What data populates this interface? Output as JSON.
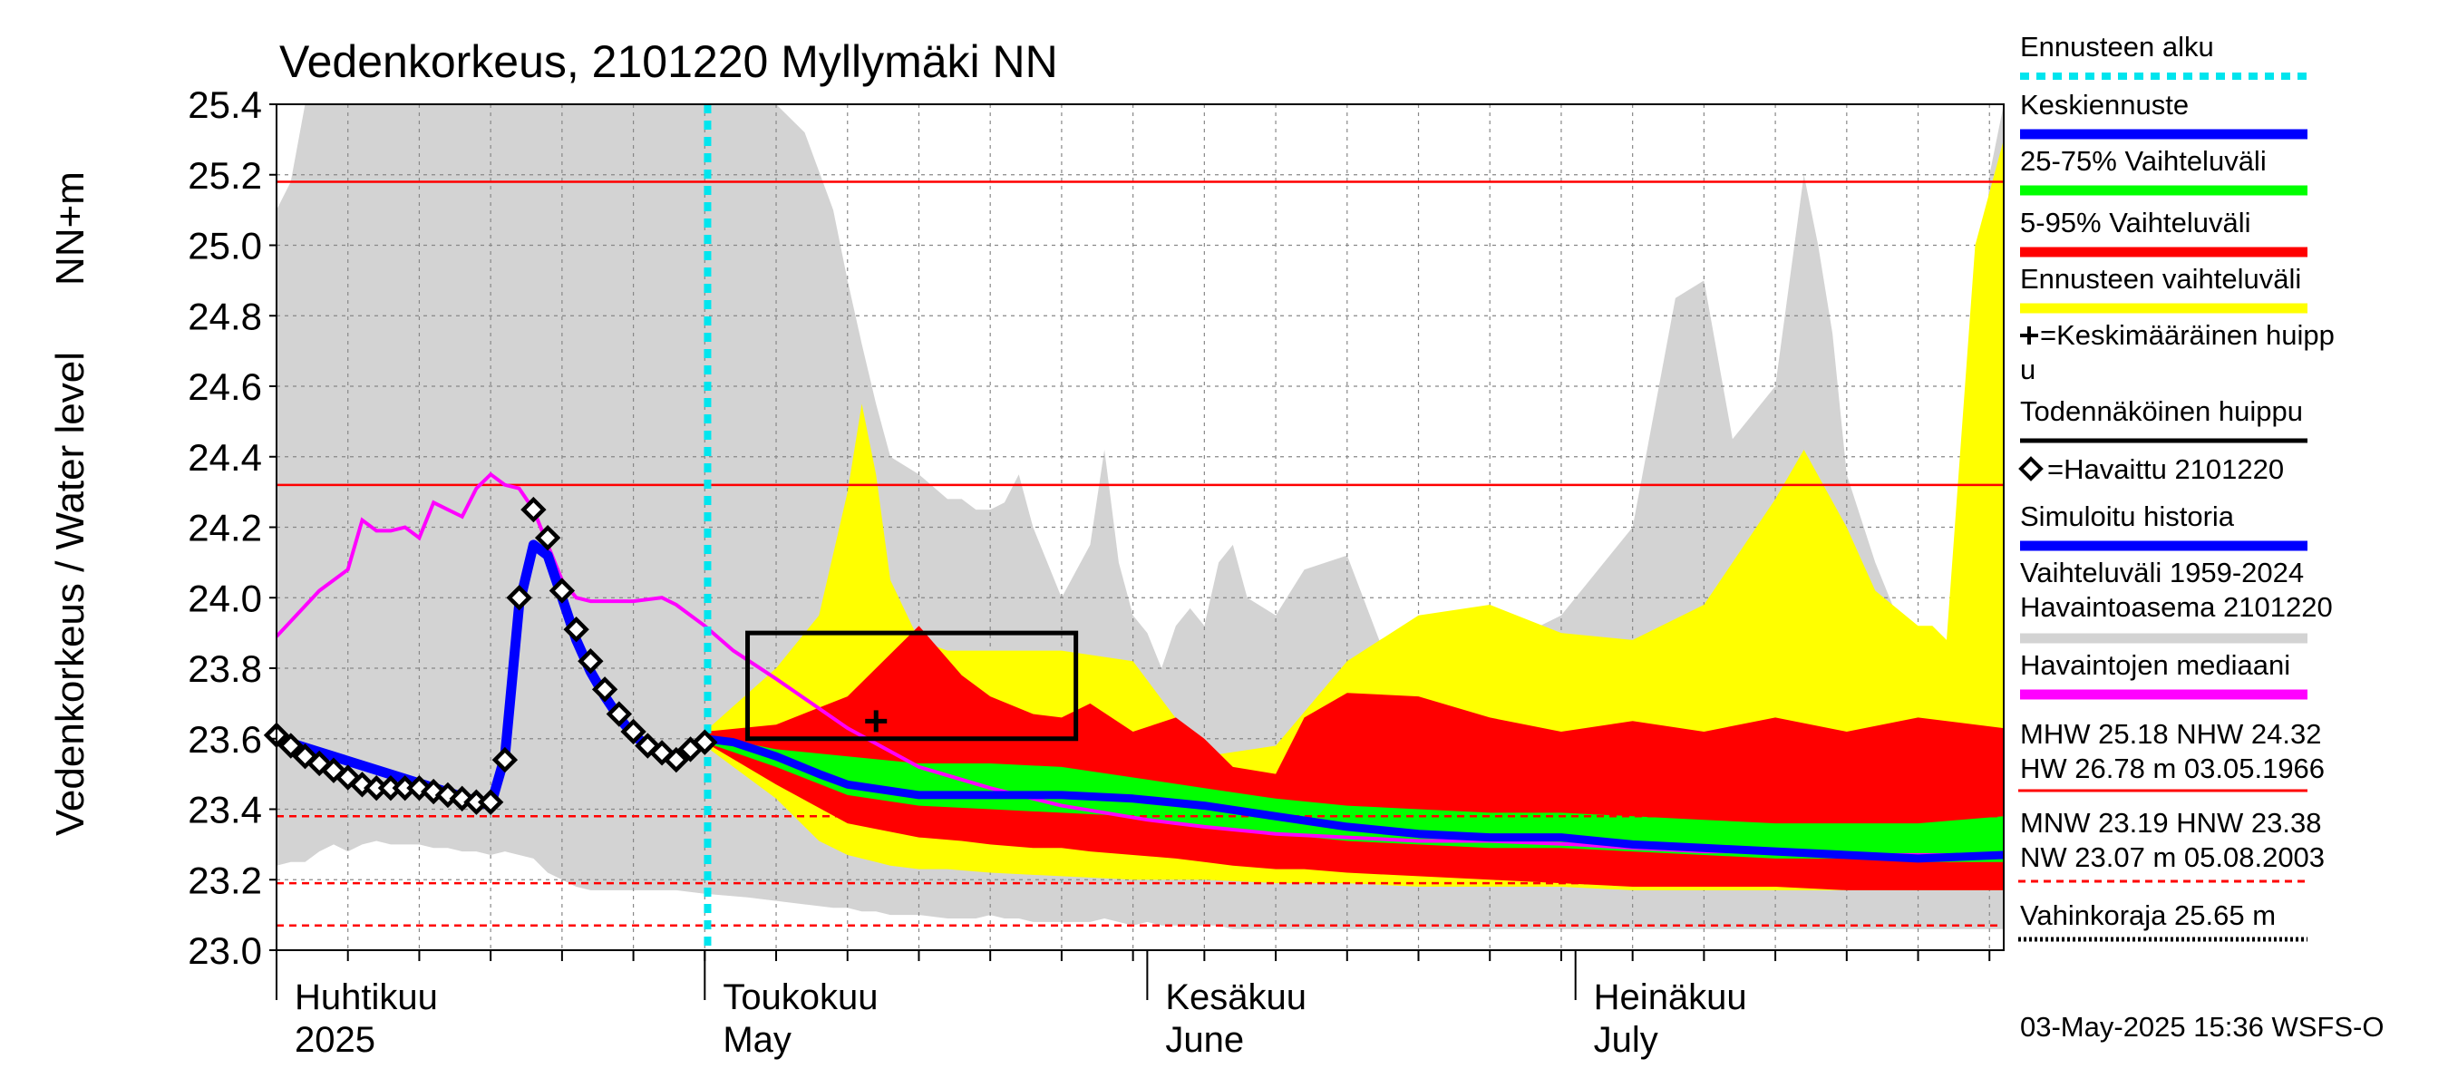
{
  "chart_data": {
    "type": "line",
    "title": "Vedenkorkeus, 2101220 Myllymäki NN",
    "ylabel_left": "Vedenkorkeus / Water level",
    "ylabel_unit": "NN+m",
    "ylim": [
      23.0,
      25.4
    ],
    "yticks": [
      "25.4",
      "25.2",
      "25.0",
      "24.8",
      "24.6",
      "24.4",
      "24.2",
      "24.0",
      "23.8",
      "23.6",
      "23.4",
      "23.2",
      "23.0"
    ],
    "xlim_days": [
      0,
      121
    ],
    "x_axis_note": "day index from 2025-04-01 to 2025-07-31",
    "month_labels": [
      {
        "day": 0,
        "fi": "Huhtikuu",
        "en": "2025"
      },
      {
        "day": 30,
        "fi": "Toukokuu",
        "en": "May"
      },
      {
        "day": 61,
        "fi": "Kesäkuu",
        "en": "June"
      },
      {
        "day": 91,
        "fi": "Heinäkuu",
        "en": "July"
      }
    ],
    "forecast_start_day": 30.2,
    "reference_lines": [
      {
        "name": "MHW",
        "value": 25.18,
        "style": "solid"
      },
      {
        "name": "NHW",
        "value": 24.32,
        "style": "solid"
      },
      {
        "name": "HNW",
        "value": 23.38,
        "style": "dashed"
      },
      {
        "name": "MNW",
        "value": 23.19,
        "style": "dashed"
      },
      {
        "name": "NW",
        "value": 23.07,
        "style": "dashed"
      }
    ],
    "observed": {
      "name": "Havaittu 2101220",
      "x": [
        0,
        1,
        2,
        3,
        4,
        5,
        6,
        7,
        8,
        9,
        10,
        11,
        12,
        13,
        14,
        15,
        16,
        17,
        18,
        19,
        20,
        21,
        22,
        23,
        24,
        25,
        26,
        27,
        28,
        29,
        30
      ],
      "y": [
        23.61,
        23.58,
        23.55,
        23.53,
        23.51,
        23.49,
        23.47,
        23.46,
        23.46,
        23.46,
        23.46,
        23.45,
        23.44,
        23.43,
        23.42,
        23.42,
        23.54,
        24.0,
        24.25,
        24.17,
        24.02,
        23.91,
        23.82,
        23.74,
        23.67,
        23.62,
        23.58,
        23.56,
        23.54,
        23.57,
        23.59
      ]
    },
    "simulated_history": {
      "name": "Simuloitu historia",
      "x": [
        0,
        15,
        16,
        17,
        18,
        19,
        20,
        21,
        22,
        23,
        24,
        25,
        26,
        27,
        28,
        29,
        30
      ],
      "y": [
        23.6,
        23.41,
        23.55,
        23.98,
        24.15,
        24.12,
        24.0,
        23.88,
        23.79,
        23.72,
        23.66,
        23.61,
        23.58,
        23.56,
        23.55,
        23.57,
        23.6
      ]
    },
    "median": {
      "name": "Havaintojen mediaani",
      "x": [
        0,
        3,
        5,
        6,
        7,
        8,
        9,
        10,
        11,
        12,
        13,
        14,
        15,
        16,
        17,
        18,
        19,
        20,
        21,
        22,
        23,
        25,
        27,
        28,
        30,
        32,
        35,
        40,
        45,
        50,
        55,
        61,
        65,
        70,
        75,
        80,
        85,
        91,
        95,
        100,
        105,
        110,
        115,
        121
      ],
      "y": [
        23.89,
        24.02,
        24.08,
        24.22,
        24.19,
        24.19,
        24.2,
        24.17,
        24.27,
        24.25,
        24.23,
        24.31,
        24.35,
        24.32,
        24.31,
        24.25,
        24.15,
        24.05,
        24.0,
        23.99,
        23.99,
        23.99,
        24.0,
        23.98,
        23.92,
        23.85,
        23.77,
        23.63,
        23.52,
        23.46,
        23.41,
        23.37,
        23.35,
        23.33,
        23.32,
        23.31,
        23.31,
        23.3,
        23.29,
        23.28,
        23.28,
        23.27,
        23.27,
        23.27
      ]
    },
    "forecast_median": {
      "name": "Keskiennuste",
      "x": [
        30,
        32,
        35,
        38,
        40,
        45,
        50,
        55,
        60,
        65,
        70,
        75,
        80,
        85,
        90,
        95,
        100,
        105,
        110,
        115,
        121
      ],
      "y": [
        23.6,
        23.59,
        23.55,
        23.5,
        23.47,
        23.44,
        23.44,
        23.44,
        23.43,
        23.41,
        23.38,
        23.35,
        23.33,
        23.32,
        23.32,
        23.3,
        23.29,
        23.28,
        23.27,
        23.26,
        23.27
      ]
    },
    "band_25_75": {
      "name": "25-75% Vaihteluväli",
      "x": [
        30,
        35,
        40,
        45,
        50,
        55,
        60,
        65,
        70,
        75,
        80,
        85,
        90,
        95,
        100,
        105,
        110,
        115,
        121
      ],
      "low": [
        23.59,
        23.52,
        23.44,
        23.41,
        23.4,
        23.39,
        23.38,
        23.35,
        23.33,
        23.31,
        23.3,
        23.29,
        23.29,
        23.28,
        23.27,
        23.26,
        23.26,
        23.25,
        23.25
      ],
      "high": [
        23.61,
        23.57,
        23.55,
        23.53,
        23.53,
        23.52,
        23.49,
        23.46,
        23.43,
        23.41,
        23.4,
        23.39,
        23.39,
        23.38,
        23.37,
        23.36,
        23.36,
        23.36,
        23.38
      ]
    },
    "band_5_95": {
      "name": "5-95% Vaihteluväli",
      "x": [
        30,
        35,
        40,
        45,
        48,
        50,
        53,
        55,
        57,
        60,
        63,
        65,
        67,
        70,
        72,
        75,
        80,
        85,
        90,
        95,
        100,
        105,
        110,
        115,
        121
      ],
      "low": [
        23.59,
        23.47,
        23.36,
        23.32,
        23.31,
        23.3,
        23.29,
        23.29,
        23.28,
        23.27,
        23.26,
        23.25,
        23.24,
        23.23,
        23.23,
        23.22,
        23.21,
        23.2,
        23.19,
        23.18,
        23.18,
        23.18,
        23.17,
        23.17,
        23.17
      ],
      "high": [
        23.62,
        23.64,
        23.72,
        23.92,
        23.78,
        23.72,
        23.67,
        23.66,
        23.7,
        23.62,
        23.66,
        23.6,
        23.52,
        23.5,
        23.66,
        23.73,
        23.72,
        23.66,
        23.62,
        23.65,
        23.62,
        23.66,
        23.62,
        23.66,
        23.63
      ]
    },
    "band_forecast": {
      "name": "Ennusteen vaihteluväli",
      "x": [
        30,
        35,
        38,
        40,
        41,
        42,
        43,
        45,
        47,
        50,
        55,
        60,
        65,
        70,
        75,
        80,
        85,
        90,
        95,
        100,
        105,
        107,
        110,
        112,
        115,
        116,
        117,
        119,
        121
      ],
      "low": [
        23.58,
        23.43,
        23.31,
        23.27,
        23.26,
        23.25,
        23.24,
        23.23,
        23.23,
        23.22,
        23.21,
        23.2,
        23.2,
        23.19,
        23.19,
        23.18,
        23.18,
        23.18,
        23.17,
        23.17,
        23.17,
        23.17,
        23.17,
        23.17,
        23.17,
        23.17,
        23.17,
        23.17,
        23.17
      ],
      "high": [
        23.62,
        23.8,
        23.95,
        24.3,
        24.55,
        24.35,
        24.05,
        23.88,
        23.85,
        23.85,
        23.85,
        23.82,
        23.55,
        23.58,
        23.82,
        23.95,
        23.98,
        23.9,
        23.88,
        23.98,
        24.28,
        24.42,
        24.2,
        24.02,
        23.92,
        23.92,
        23.88,
        25.0,
        25.3
      ]
    },
    "band_history": {
      "name": "Vaihteluväli 1959-2024 Havaintoasema 2101220",
      "x": [
        0,
        1,
        2,
        3,
        4,
        5,
        6,
        7,
        8,
        9,
        10,
        11,
        12,
        13,
        14,
        15,
        16,
        17,
        18,
        19,
        20,
        21,
        22,
        25,
        28,
        30,
        33,
        35,
        37,
        39,
        40,
        41,
        42,
        43,
        45,
        47,
        48,
        49,
        50,
        51,
        52,
        53,
        55,
        57,
        58,
        59,
        60,
        61,
        62,
        63,
        64,
        65,
        66,
        67,
        68,
        70,
        72,
        75,
        78,
        80,
        85,
        90,
        95,
        98,
        100,
        102,
        105,
        107,
        108,
        109,
        110,
        112,
        114,
        116,
        117,
        118,
        119,
        120,
        121
      ],
      "low": [
        23.24,
        23.25,
        23.25,
        23.28,
        23.3,
        23.28,
        23.3,
        23.31,
        23.3,
        23.3,
        23.3,
        23.29,
        23.29,
        23.28,
        23.28,
        23.27,
        23.28,
        23.27,
        23.26,
        23.22,
        23.2,
        23.18,
        23.17,
        23.17,
        23.17,
        23.16,
        23.15,
        23.14,
        23.13,
        23.12,
        23.12,
        23.11,
        23.11,
        23.1,
        23.1,
        23.09,
        23.09,
        23.09,
        23.1,
        23.09,
        23.09,
        23.08,
        23.08,
        23.08,
        23.09,
        23.08,
        23.07,
        23.08,
        23.07,
        23.07,
        23.07,
        23.07,
        23.07,
        23.06,
        23.06,
        23.06,
        23.06,
        23.06,
        23.06,
        23.06,
        23.06,
        23.06,
        23.06,
        23.06,
        23.06,
        23.06,
        23.06,
        23.06,
        23.06,
        23.06,
        23.06,
        23.06,
        23.06,
        23.06,
        23.06,
        23.06,
        23.06,
        23.06,
        23.06
      ],
      "high": [
        25.1,
        25.18,
        25.4,
        25.4,
        25.4,
        25.4,
        25.4,
        25.4,
        25.4,
        25.4,
        25.4,
        25.4,
        25.4,
        25.4,
        25.4,
        25.4,
        25.4,
        25.4,
        25.4,
        25.4,
        25.4,
        25.4,
        25.4,
        25.4,
        25.4,
        25.4,
        25.4,
        25.4,
        25.32,
        25.1,
        24.9,
        24.72,
        24.55,
        24.4,
        24.35,
        24.28,
        24.28,
        24.25,
        24.25,
        24.27,
        24.35,
        24.2,
        24.0,
        24.15,
        24.42,
        24.1,
        23.95,
        23.9,
        23.8,
        23.92,
        23.97,
        23.92,
        24.1,
        24.15,
        24.0,
        23.95,
        24.08,
        24.12,
        23.8,
        23.72,
        23.85,
        23.95,
        24.2,
        24.85,
        24.9,
        24.45,
        24.6,
        25.2,
        25.0,
        24.75,
        24.35,
        24.1,
        23.9,
        23.78,
        23.78,
        23.95,
        24.4,
        25.2,
        25.4
      ]
    },
    "mean_peak": {
      "name": "=Keskimääräinen huippu",
      "x": 42,
      "y": 23.65
    },
    "probable_peak_box": {
      "name": "Todennäköinen huippu",
      "x0": 33,
      "x1": 56,
      "y0": 23.6,
      "y1": 23.9
    }
  },
  "legend": [
    {
      "label": "Ennusteen alku",
      "color": "#00e5ee",
      "style": "dotted"
    },
    {
      "label": "Keskiennuste",
      "color": "#0000ff",
      "style": "solid"
    },
    {
      "label": "25-75% Vaihteluväli",
      "color": "#00ff00",
      "style": "solid"
    },
    {
      "label": "5-95% Vaihteluväli",
      "color": "#ff0000",
      "style": "solid"
    },
    {
      "label": "Ennusteen vaihteluväli",
      "color": "#ffff00",
      "style": "solid"
    },
    {
      "label": "=Keskimääräinen huipp",
      "label_cont": "u",
      "color": "#000000",
      "style": "plus"
    },
    {
      "label": "Todennäköinen huippu",
      "color": "#000000",
      "style": "solid"
    },
    {
      "label": "=Havaittu 2101220",
      "color": "#000000",
      "style": "diamond"
    },
    {
      "label": "Simuloitu historia",
      "color": "#0000ff",
      "style": "solid"
    },
    {
      "label": "Vaihteluväli 1959-2024",
      "label_cont": " Havaintoasema 2101220",
      "color": "#d3d3d3",
      "style": "solid"
    },
    {
      "label": "Havaintojen mediaani",
      "color": "#ff00ff",
      "style": "solid"
    }
  ],
  "stats": {
    "line1": "MHW  25.18 NHW  24.32",
    "line2": "HW  26.78 m 03.05.1966",
    "line3": "MNW  23.19 HNW  23.38",
    "line4": "NW  23.07 m 05.08.2003",
    "line5": "Vahinkoraja 25.65 m"
  },
  "colors": {
    "history_band": "#d3d3d3",
    "forecast_band": "#ffff00",
    "band_5_95": "#ff0000",
    "band_25_75": "#00ff00",
    "forecast_median": "#0000ff",
    "simulated": "#0000ff",
    "median": "#ff00ff",
    "forecast_start": "#00e5ee",
    "refline": "#ff0000"
  },
  "footer": "03-May-2025 15:36 WSFS-O"
}
